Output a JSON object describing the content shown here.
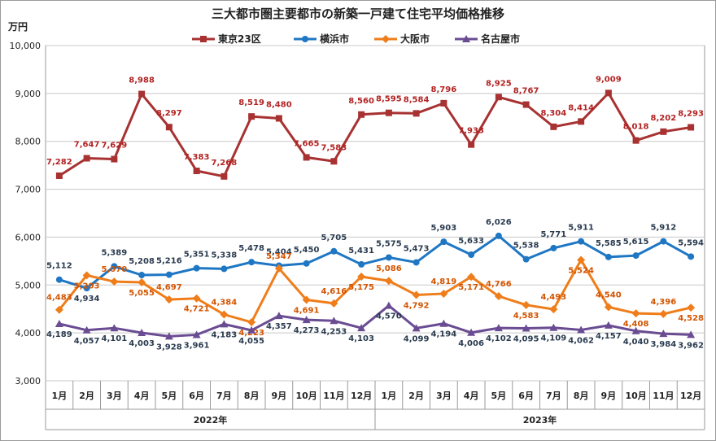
{
  "title": "三大都市圏主要都市の新築一戸建て住宅平均価格推移",
  "y_unit": "万円",
  "chart_data": {
    "type": "line",
    "title": "三大都市圏主要都市の新築一戸建て住宅平均価格推移",
    "ylabel": "万円",
    "ylim": [
      3000,
      10000
    ],
    "yticks": [
      "3,000",
      "4,000",
      "5,000",
      "6,000",
      "7,000",
      "8,000",
      "9,000",
      "10,000"
    ],
    "categories": [
      "1月",
      "2月",
      "3月",
      "4月",
      "5月",
      "6月",
      "7月",
      "8月",
      "9月",
      "10月",
      "11月",
      "12月",
      "1月",
      "2月",
      "3月",
      "4月",
      "5月",
      "6月",
      "7月",
      "8月",
      "9月",
      "10月",
      "11月",
      "12月"
    ],
    "year_groups": [
      {
        "label": "2022年",
        "start": 0,
        "end": 11
      },
      {
        "label": "2023年",
        "start": 12,
        "end": 23
      }
    ],
    "legend_position": "top",
    "grid": true,
    "series": [
      {
        "name": "東京23区",
        "color": "#a83232",
        "label_color": "#b22222",
        "marker": "square",
        "values": [
          7282,
          7647,
          7629,
          8988,
          8297,
          7383,
          7268,
          8519,
          8480,
          7665,
          7583,
          8560,
          8595,
          8584,
          8796,
          7933,
          8925,
          8767,
          8304,
          8414,
          9009,
          8018,
          8202,
          8293
        ]
      },
      {
        "name": "横浜市",
        "color": "#1f77c4",
        "label_color": "#2a3b4f",
        "marker": "circle",
        "values": [
          5112,
          4934,
          5389,
          5208,
          5216,
          5351,
          5338,
          5478,
          5404,
          5450,
          5705,
          5431,
          5575,
          5473,
          5903,
          5633,
          6026,
          5538,
          5771,
          5911,
          5585,
          5615,
          5912,
          5594
        ]
      },
      {
        "name": "大阪市",
        "color": "#ef7d1a",
        "label_color": "#d35400",
        "marker": "diamond",
        "values": [
          4483,
          5203,
          5070,
          5055,
          4697,
          4721,
          4384,
          4223,
          5347,
          4691,
          4616,
          5175,
          5086,
          4792,
          4819,
          5171,
          4766,
          4583,
          4493,
          5524,
          4540,
          4408,
          4396,
          4528
        ]
      },
      {
        "name": "名古屋市",
        "color": "#6a4c93",
        "label_color": "#2a3b4f",
        "marker": "triangle",
        "values": [
          4189,
          4057,
          4101,
          4003,
          3928,
          3961,
          4183,
          4055,
          4357,
          4273,
          4253,
          4103,
          4570,
          4099,
          4194,
          4006,
          4102,
          4095,
          4109,
          4062,
          4157,
          4040,
          3984,
          3962
        ]
      }
    ]
  }
}
